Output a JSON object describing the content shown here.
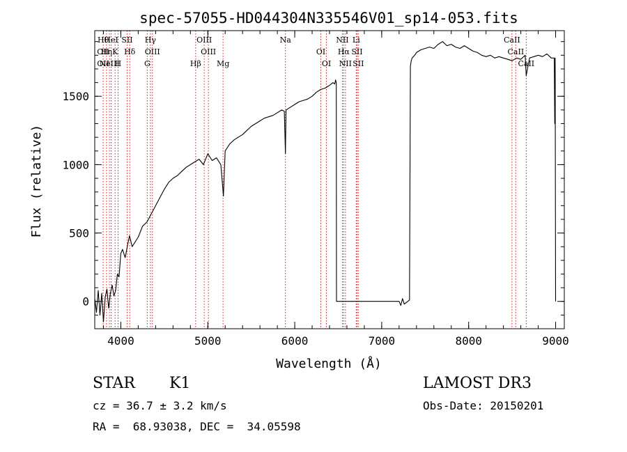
{
  "chart_data": {
    "type": "line",
    "title": "spec-57055-HD044304N335546V01_sp14-053.fits",
    "xlabel": "Wavelength (Å)",
    "ylabel": "Flux (relative)",
    "xlim": [
      3700,
      9100
    ],
    "ylim": [
      -200,
      1980
    ],
    "xticks": [
      4000,
      5000,
      6000,
      7000,
      8000,
      9000
    ],
    "yticks": [
      0,
      500,
      1000,
      1500
    ],
    "grid": false,
    "line_color": "#000000",
    "marker_color": "#b22222",
    "series": [
      {
        "x": [
          3700,
          3720,
          3740,
          3760,
          3780,
          3800,
          3820,
          3840,
          3860,
          3880,
          3900,
          3920,
          3940,
          3960,
          3980,
          4000,
          4020,
          4050,
          4080,
          4100,
          4130,
          4160,
          4200,
          4250,
          4300,
          4350,
          4400,
          4450,
          4500,
          4550,
          4600,
          4650,
          4700,
          4750,
          4800,
          4850,
          4900,
          4950,
          5000,
          5050,
          5100,
          5150,
          5180,
          5200,
          5250,
          5300,
          5350,
          5400,
          5450,
          5500,
          5550,
          5600,
          5650,
          5700,
          5750,
          5800,
          5850,
          5880,
          5893,
          5900,
          5950,
          6000,
          6050,
          6100,
          6150,
          6200,
          6250,
          6300,
          6350,
          6400,
          6440,
          6460,
          6470,
          6478,
          6480,
          6500,
          6600,
          6800,
          7000,
          7100,
          7200,
          7220,
          7240,
          7260,
          7300,
          7320,
          7330,
          7340,
          7350,
          7380,
          7400,
          7450,
          7500,
          7550,
          7600,
          7650,
          7700,
          7750,
          7800,
          7850,
          7900,
          7950,
          8000,
          8050,
          8100,
          8150,
          8200,
          8250,
          8300,
          8350,
          8400,
          8450,
          8500,
          8550,
          8600,
          8650,
          8662,
          8700,
          8750,
          8800,
          8850,
          8900,
          8950,
          8985,
          8990,
          8995,
          9000
        ],
        "y": [
          20,
          -80,
          80,
          -100,
          60,
          -150,
          30,
          90,
          -50,
          60,
          120,
          40,
          80,
          200,
          180,
          350,
          380,
          320,
          420,
          480,
          400,
          430,
          470,
          550,
          580,
          640,
          700,
          760,
          820,
          870,
          900,
          920,
          950,
          980,
          1000,
          1020,
          1040,
          1000,
          1080,
          1030,
          1050,
          1000,
          770,
          1100,
          1150,
          1180,
          1200,
          1220,
          1250,
          1280,
          1300,
          1320,
          1340,
          1350,
          1360,
          1380,
          1400,
          1390,
          1080,
          1400,
          1420,
          1440,
          1460,
          1470,
          1480,
          1500,
          1530,
          1550,
          1560,
          1580,
          1600,
          1590,
          1620,
          1600,
          0,
          0,
          0,
          0,
          0,
          0,
          0,
          -30,
          20,
          -20,
          0,
          10,
          1720,
          1760,
          1780,
          1800,
          1820,
          1840,
          1850,
          1860,
          1850,
          1880,
          1900,
          1870,
          1880,
          1860,
          1850,
          1870,
          1850,
          1830,
          1820,
          1800,
          1790,
          1800,
          1780,
          1790,
          1780,
          1770,
          1760,
          1780,
          1770,
          1800,
          1650,
          1780,
          1790,
          1800,
          1790,
          1810,
          1780,
          1780,
          1300,
          1780,
          0
        ]
      }
    ],
    "lines": [
      {
        "x": 3797,
        "labels": [
          "Hθ",
          "OII",
          "OII"
        ]
      },
      {
        "x": 3835,
        "labels": [
          "Hη"
        ]
      },
      {
        "x": 3869,
        "labels": [
          "NeIII"
        ]
      },
      {
        "x": 3889,
        "labels": [
          "HeI"
        ]
      },
      {
        "x": 3934,
        "labels": [
          "K"
        ]
      },
      {
        "x": 3968,
        "labels": [
          "H"
        ]
      },
      {
        "x": 4072,
        "labels": [
          "SII"
        ]
      },
      {
        "x": 4102,
        "labels": [
          "Hδ"
        ]
      },
      {
        "x": 4304,
        "labels": [
          "G"
        ]
      },
      {
        "x": 4340,
        "labels": [
          "Hγ"
        ]
      },
      {
        "x": 4363,
        "labels": [
          "OIII"
        ]
      },
      {
        "x": 4861,
        "labels": [
          "Hβ"
        ]
      },
      {
        "x": 4959,
        "labels": [
          "OIII"
        ]
      },
      {
        "x": 5007,
        "labels": [
          "OIII"
        ]
      },
      {
        "x": 5175,
        "labels": [
          "Mg"
        ]
      },
      {
        "x": 5893,
        "labels": [
          "Na"
        ]
      },
      {
        "x": 6300,
        "labels": [
          "OI"
        ]
      },
      {
        "x": 6364,
        "labels": [
          "OI"
        ]
      },
      {
        "x": 6548,
        "labels": [
          "NII"
        ]
      },
      {
        "x": 6563,
        "labels": [
          "Hα"
        ]
      },
      {
        "x": 6583,
        "labels": [
          "NII"
        ]
      },
      {
        "x": 6707,
        "labels": [
          "Li"
        ]
      },
      {
        "x": 6716,
        "labels": [
          "SII"
        ]
      },
      {
        "x": 6731,
        "labels": [
          "SII"
        ]
      },
      {
        "x": 8498,
        "labels": [
          "CaII"
        ]
      },
      {
        "x": 8542,
        "labels": [
          "CaII"
        ]
      },
      {
        "x": 8662,
        "labels": [
          "CaII"
        ]
      }
    ]
  },
  "info": {
    "class": "STAR",
    "subclass": "K1",
    "survey": "LAMOST DR3",
    "cz": "cz = 36.7 ± 3.2 km/s",
    "obs_date": "Obs-Date: 20150201",
    "coords": "RA =  68.93038, DEC =  34.05598"
  }
}
